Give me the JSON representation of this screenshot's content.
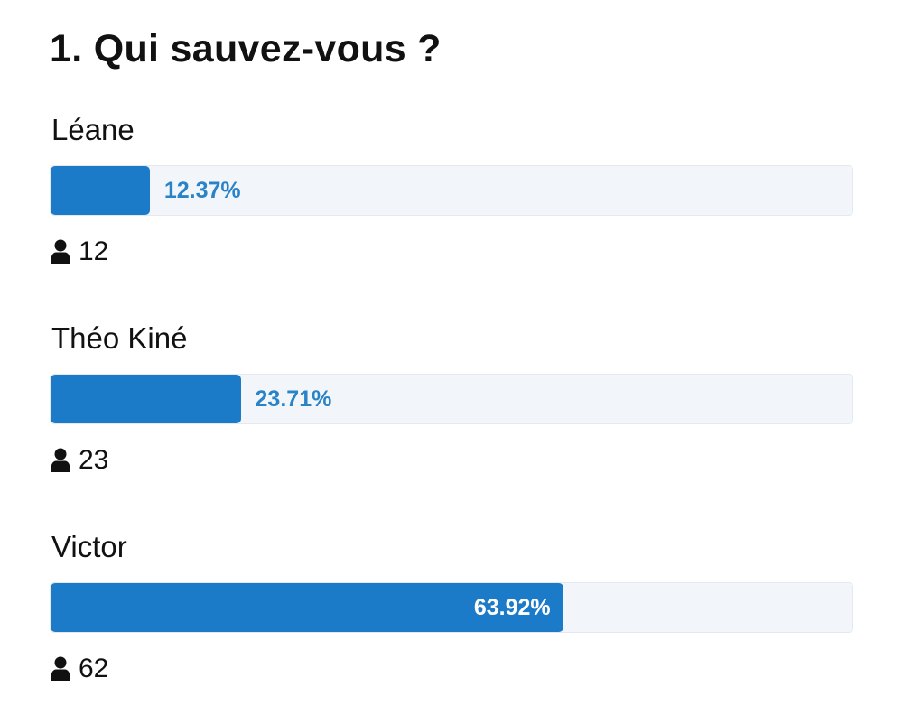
{
  "poll": {
    "title": "1. Qui sauvez-vous ?",
    "options": [
      {
        "label": "Léane",
        "percent": 12.37,
        "percent_label": "12.37%",
        "votes": 12
      },
      {
        "label": "Théo Kiné",
        "percent": 23.71,
        "percent_label": "23.71%",
        "votes": 23
      },
      {
        "label": "Victor",
        "percent": 63.92,
        "percent_label": "63.92%",
        "votes": 62
      }
    ]
  }
}
